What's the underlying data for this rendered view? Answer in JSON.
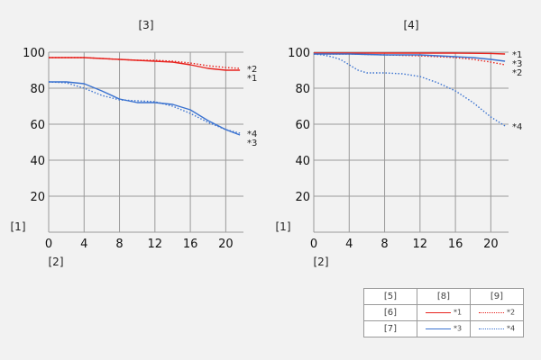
{
  "chart_data": [
    {
      "type": "line",
      "title": "[3]",
      "ylabel": "[1]",
      "xlabel": "[2]",
      "xlim": [
        0,
        22
      ],
      "ylim": [
        0,
        100
      ],
      "xticks": [
        0,
        4,
        8,
        12,
        16,
        20
      ],
      "yticks": [
        20,
        40,
        60,
        80,
        100
      ],
      "grid": true,
      "series": [
        {
          "name": "*1",
          "color": "#e8231e",
          "dash": "solid",
          "x": [
            0,
            2,
            4,
            6,
            8,
            10,
            12,
            14,
            16,
            18,
            20,
            21.6
          ],
          "y": [
            97,
            97,
            97,
            96.5,
            96,
            95.5,
            95,
            94.5,
            93,
            91,
            90,
            90
          ]
        },
        {
          "name": "*2",
          "color": "#e8231e",
          "dash": "dotted",
          "x": [
            0,
            2,
            4,
            6,
            8,
            10,
            12,
            14,
            16,
            18,
            20,
            21.6
          ],
          "y": [
            97,
            97,
            97,
            96.5,
            96,
            95.5,
            95.5,
            95,
            94,
            92.5,
            91.5,
            91
          ]
        },
        {
          "name": "*3",
          "color": "#3a72d0",
          "dash": "solid",
          "x": [
            0,
            2,
            4,
            6,
            8,
            10,
            12,
            14,
            16,
            18,
            20,
            21.6
          ],
          "y": [
            83.5,
            83.5,
            82.5,
            78.5,
            74,
            72,
            72,
            71,
            68,
            62,
            57,
            54
          ]
        },
        {
          "name": "*4",
          "color": "#3a72d0",
          "dash": "dotted",
          "x": [
            0,
            2,
            4,
            6,
            8,
            10,
            12,
            14,
            16,
            18,
            20,
            21.6
          ],
          "y": [
            83.5,
            83,
            80,
            76,
            73.5,
            73,
            72.5,
            70,
            66,
            61,
            57,
            55
          ]
        }
      ]
    },
    {
      "type": "line",
      "title": "[4]",
      "ylabel": "[1]",
      "xlabel": "[2]",
      "xlim": [
        0,
        22
      ],
      "ylim": [
        0,
        100
      ],
      "xticks": [
        0,
        4,
        8,
        12,
        16,
        20
      ],
      "yticks": [
        20,
        40,
        60,
        80,
        100
      ],
      "grid": true,
      "series": [
        {
          "name": "*1",
          "color": "#e8231e",
          "dash": "solid",
          "x": [
            0,
            4,
            8,
            12,
            16,
            20,
            21.6
          ],
          "y": [
            99.5,
            99.5,
            99.5,
            99.5,
            99.5,
            99.3,
            99
          ]
        },
        {
          "name": "*2",
          "color": "#e8231e",
          "dash": "dotted",
          "x": [
            0,
            4,
            8,
            12,
            16,
            18,
            20,
            21.6
          ],
          "y": [
            99,
            99,
            98.5,
            98,
            97,
            96,
            94.5,
            93
          ]
        },
        {
          "name": "*3",
          "color": "#3a72d0",
          "dash": "solid",
          "x": [
            0,
            4,
            8,
            12,
            16,
            18,
            20,
            21.6
          ],
          "y": [
            99,
            99,
            98.5,
            98.5,
            97.5,
            97,
            96,
            95
          ]
        },
        {
          "name": "*4",
          "color": "#3a72d0",
          "dash": "dotted",
          "x": [
            0,
            1,
            2,
            3,
            4,
            5,
            6,
            7,
            8,
            10,
            12,
            14,
            16,
            18,
            20,
            21.6
          ],
          "y": [
            99,
            98.5,
            97.5,
            96,
            93,
            90,
            88.5,
            88.5,
            88.5,
            88,
            86.5,
            83,
            78.5,
            72,
            64,
            59
          ]
        }
      ]
    }
  ],
  "legend": {
    "header": [
      "[5]",
      "[8]",
      "[9]"
    ],
    "rows": [
      {
        "label": "[6]",
        "solid": "*1",
        "dotted": "*2",
        "color": "#e8231e"
      },
      {
        "label": "[7]",
        "solid": "*3",
        "dotted": "*4",
        "color": "#3a72d0"
      }
    ]
  }
}
